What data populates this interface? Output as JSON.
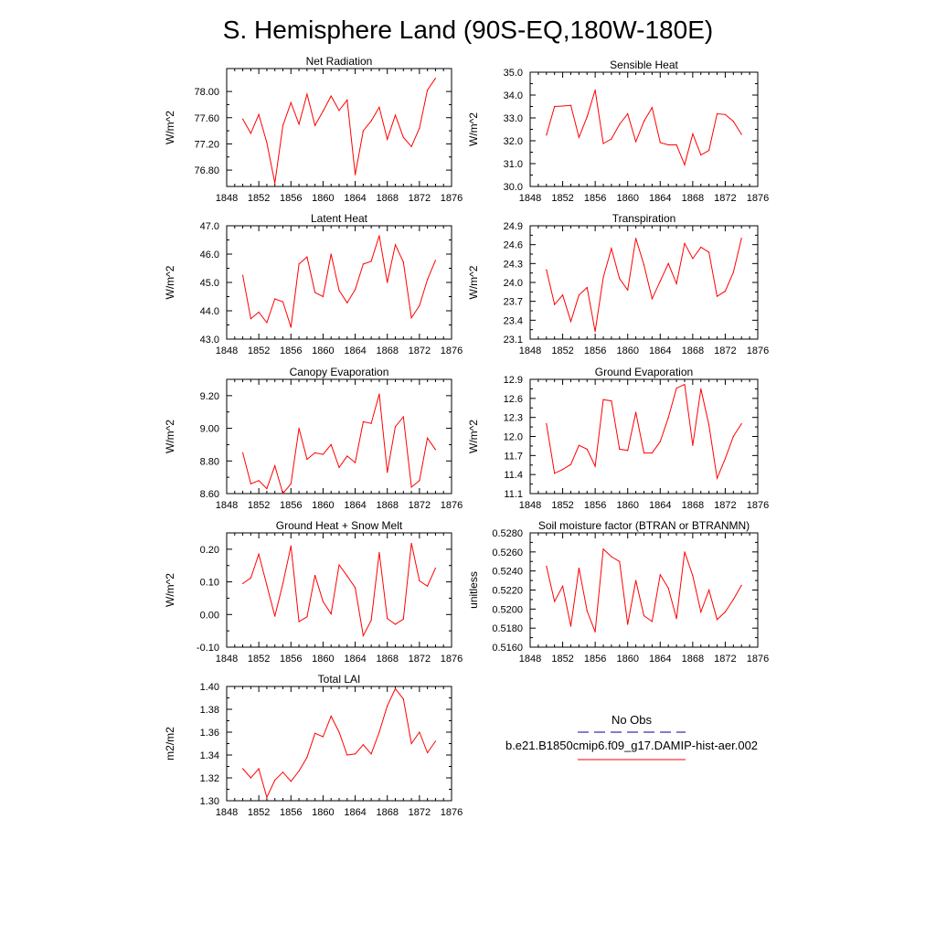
{
  "page_title": "S. Hemisphere Land (90S-EQ,180W-180E)",
  "legend": {
    "obs_label": "No Obs",
    "model_label": "b.e21.B1850cmip6.f09_g17.DAMIP-hist-aer.002",
    "obs_color": "#3333aa",
    "model_color": "#ff0000"
  },
  "chart_data": [
    {
      "type": "line",
      "title": "Net Radiation",
      "ylabel": "W/m^2",
      "xlim": [
        1848,
        1876
      ],
      "ylim": [
        76.55,
        78.35
      ],
      "xticks": [
        1848,
        1852,
        1856,
        1860,
        1864,
        1868,
        1872,
        1876
      ],
      "xtick_labels": [
        "1848",
        "1852",
        "1856",
        "1860",
        "1864",
        "1868",
        "1872",
        "1876"
      ],
      "yticks": [
        76.8,
        77.2,
        77.6,
        78.0
      ],
      "ytick_labels": [
        "76.80",
        "77.20",
        "77.60",
        "78.00"
      ],
      "series": [
        {
          "color": "#ff0000",
          "x": [
            1850,
            1851,
            1852,
            1853,
            1854,
            1855,
            1856,
            1857,
            1858,
            1859,
            1860,
            1861,
            1862,
            1863,
            1864,
            1865,
            1866,
            1867,
            1868,
            1869,
            1870,
            1871,
            1872,
            1873,
            1874
          ],
          "values": [
            77.58,
            77.36,
            77.65,
            77.22,
            76.6,
            77.48,
            77.83,
            77.5,
            77.96,
            77.48,
            77.7,
            77.93,
            77.71,
            77.87,
            76.73,
            77.4,
            77.55,
            77.76,
            77.27,
            77.64,
            77.3,
            77.16,
            77.44,
            78.02,
            78.2
          ]
        }
      ]
    },
    {
      "type": "line",
      "title": "Sensible Heat",
      "ylabel": "W/m^2",
      "xlim": [
        1848,
        1876
      ],
      "ylim": [
        30.0,
        35.0
      ],
      "xticks": [
        1848,
        1852,
        1856,
        1860,
        1864,
        1868,
        1872,
        1876
      ],
      "xtick_labels": [
        "1848",
        "1852",
        "1856",
        "1860",
        "1864",
        "1868",
        "1872",
        "1876"
      ],
      "yticks": [
        30.0,
        31.0,
        32.0,
        33.0,
        34.0,
        35.0
      ],
      "ytick_labels": [
        "30.0",
        "31.0",
        "32.0",
        "33.0",
        "34.0",
        "35.0"
      ],
      "series": [
        {
          "color": "#ff0000",
          "x": [
            1850,
            1851,
            1852,
            1853,
            1854,
            1855,
            1856,
            1857,
            1858,
            1859,
            1860,
            1861,
            1862,
            1863,
            1864,
            1865,
            1866,
            1867,
            1868,
            1869,
            1870,
            1871,
            1872,
            1873,
            1874
          ],
          "values": [
            32.25,
            33.5,
            33.52,
            33.55,
            32.15,
            33.05,
            34.22,
            31.88,
            32.08,
            32.72,
            33.18,
            31.96,
            32.85,
            33.45,
            31.92,
            31.82,
            31.82,
            30.95,
            32.3,
            31.38,
            31.58,
            33.18,
            33.15,
            32.85,
            32.28
          ]
        }
      ]
    },
    {
      "type": "line",
      "title": "Latent Heat",
      "ylabel": "W/m^2",
      "xlim": [
        1848,
        1876
      ],
      "ylim": [
        43.0,
        47.0
      ],
      "xticks": [
        1848,
        1852,
        1856,
        1860,
        1864,
        1868,
        1872,
        1876
      ],
      "xtick_labels": [
        "1848",
        "1852",
        "1856",
        "1860",
        "1864",
        "1868",
        "1872",
        "1876"
      ],
      "yticks": [
        43.0,
        44.0,
        45.0,
        46.0,
        47.0
      ],
      "ytick_labels": [
        "43.0",
        "44.0",
        "45.0",
        "46.0",
        "47.0"
      ],
      "series": [
        {
          "color": "#ff0000",
          "x": [
            1850,
            1851,
            1852,
            1853,
            1854,
            1855,
            1856,
            1857,
            1858,
            1859,
            1860,
            1861,
            1862,
            1863,
            1864,
            1865,
            1866,
            1867,
            1868,
            1869,
            1870,
            1871,
            1872,
            1873,
            1874
          ],
          "values": [
            45.25,
            43.72,
            43.95,
            43.58,
            44.42,
            44.32,
            43.42,
            45.65,
            45.9,
            44.65,
            44.5,
            46.0,
            44.72,
            44.28,
            44.75,
            45.65,
            45.75,
            46.65,
            45.0,
            46.33,
            45.72,
            43.75,
            44.18,
            45.1,
            45.78
          ]
        }
      ]
    },
    {
      "type": "line",
      "title": "Transpiration",
      "ylabel": "W/m^2",
      "xlim": [
        1848,
        1876
      ],
      "ylim": [
        23.1,
        24.9
      ],
      "xticks": [
        1848,
        1852,
        1856,
        1860,
        1864,
        1868,
        1872,
        1876
      ],
      "xtick_labels": [
        "1848",
        "1852",
        "1856",
        "1860",
        "1864",
        "1868",
        "1872",
        "1876"
      ],
      "yticks": [
        23.1,
        23.4,
        23.7,
        24.0,
        24.3,
        24.6,
        24.9
      ],
      "ytick_labels": [
        "23.1",
        "23.4",
        "23.7",
        "24.0",
        "24.3",
        "24.6",
        "24.9"
      ],
      "series": [
        {
          "color": "#ff0000",
          "x": [
            1850,
            1851,
            1852,
            1853,
            1854,
            1855,
            1856,
            1857,
            1858,
            1859,
            1860,
            1861,
            1862,
            1863,
            1864,
            1865,
            1866,
            1867,
            1868,
            1869,
            1870,
            1871,
            1872,
            1873,
            1874
          ],
          "values": [
            24.2,
            23.65,
            23.8,
            23.38,
            23.8,
            23.92,
            23.22,
            24.08,
            24.54,
            24.06,
            23.88,
            24.7,
            24.28,
            23.74,
            24.02,
            24.3,
            23.98,
            24.62,
            24.38,
            24.56,
            24.48,
            23.78,
            23.86,
            24.16,
            24.7
          ]
        }
      ]
    },
    {
      "type": "line",
      "title": "Canopy Evaporation",
      "ylabel": "W/m^2",
      "xlim": [
        1848,
        1876
      ],
      "ylim": [
        8.6,
        9.3
      ],
      "xticks": [
        1848,
        1852,
        1856,
        1860,
        1864,
        1868,
        1872,
        1876
      ],
      "xtick_labels": [
        "1848",
        "1852",
        "1856",
        "1860",
        "1864",
        "1868",
        "1872",
        "1876"
      ],
      "yticks": [
        8.6,
        8.8,
        9.0,
        9.2
      ],
      "ytick_labels": [
        "8.60",
        "8.80",
        "9.00",
        "9.20"
      ],
      "series": [
        {
          "color": "#ff0000",
          "x": [
            1850,
            1851,
            1852,
            1853,
            1854,
            1855,
            1856,
            1857,
            1858,
            1859,
            1860,
            1861,
            1862,
            1863,
            1864,
            1865,
            1866,
            1867,
            1868,
            1869,
            1870,
            1871,
            1872,
            1873,
            1874
          ],
          "values": [
            8.85,
            8.66,
            8.68,
            8.63,
            8.77,
            8.6,
            8.66,
            9.0,
            8.81,
            8.85,
            8.84,
            8.9,
            8.76,
            8.83,
            8.79,
            9.04,
            9.03,
            9.21,
            8.73,
            9.01,
            9.07,
            8.64,
            8.68,
            8.94,
            8.87
          ]
        }
      ]
    },
    {
      "type": "line",
      "title": "Ground Evaporation",
      "ylabel": "W/m^2",
      "xlim": [
        1848,
        1876
      ],
      "ylim": [
        11.1,
        12.9
      ],
      "xticks": [
        1848,
        1852,
        1856,
        1860,
        1864,
        1868,
        1872,
        1876
      ],
      "xtick_labels": [
        "1848",
        "1852",
        "1856",
        "1860",
        "1864",
        "1868",
        "1872",
        "1876"
      ],
      "yticks": [
        11.1,
        11.4,
        11.7,
        12.0,
        12.3,
        12.6,
        12.9
      ],
      "ytick_labels": [
        "11.1",
        "11.4",
        "11.7",
        "12.0",
        "12.3",
        "12.6",
        "12.9"
      ],
      "series": [
        {
          "color": "#ff0000",
          "x": [
            1850,
            1851,
            1852,
            1853,
            1854,
            1855,
            1856,
            1857,
            1858,
            1859,
            1860,
            1861,
            1862,
            1863,
            1864,
            1865,
            1866,
            1867,
            1868,
            1869,
            1870,
            1871,
            1872,
            1873,
            1874
          ],
          "values": [
            12.2,
            11.42,
            11.48,
            11.56,
            11.86,
            11.8,
            11.53,
            12.58,
            12.56,
            11.8,
            11.78,
            12.38,
            11.74,
            11.74,
            11.92,
            12.3,
            12.76,
            12.82,
            11.86,
            12.75,
            12.18,
            11.34,
            11.65,
            12.0,
            12.2
          ]
        }
      ]
    },
    {
      "type": "line",
      "title": "Ground Heat + Snow Melt",
      "ylabel": "W/m^2",
      "xlim": [
        1848,
        1876
      ],
      "ylim": [
        -0.1,
        0.25
      ],
      "xticks": [
        1848,
        1852,
        1856,
        1860,
        1864,
        1868,
        1872,
        1876
      ],
      "xtick_labels": [
        "1848",
        "1852",
        "1856",
        "1860",
        "1864",
        "1868",
        "1872",
        "1876"
      ],
      "yticks": [
        -0.1,
        0.0,
        0.1,
        0.2
      ],
      "ytick_labels": [
        "-0.10",
        "0.00",
        "0.10",
        "0.20"
      ],
      "series": [
        {
          "color": "#ff0000",
          "x": [
            1850,
            1851,
            1852,
            1853,
            1854,
            1855,
            1856,
            1857,
            1858,
            1859,
            1860,
            1861,
            1862,
            1863,
            1864,
            1865,
            1866,
            1867,
            1868,
            1869,
            1870,
            1871,
            1872,
            1873,
            1874
          ],
          "values": [
            0.095,
            0.112,
            0.185,
            0.09,
            -0.005,
            0.095,
            0.21,
            -0.022,
            -0.007,
            0.12,
            0.04,
            0.002,
            0.152,
            0.118,
            0.082,
            -0.065,
            -0.018,
            0.19,
            -0.012,
            -0.03,
            -0.014,
            0.218,
            0.103,
            0.087,
            0.142
          ]
        }
      ]
    },
    {
      "type": "line",
      "title": "Soil moisture factor (BTRAN or BTRANMN)",
      "ylabel": "unitless",
      "xlim": [
        1848,
        1876
      ],
      "ylim": [
        0.516,
        0.528
      ],
      "xticks": [
        1848,
        1852,
        1856,
        1860,
        1864,
        1868,
        1872,
        1876
      ],
      "xtick_labels": [
        "1848",
        "1852",
        "1856",
        "1860",
        "1864",
        "1868",
        "1872",
        "1876"
      ],
      "yticks": [
        0.516,
        0.518,
        0.52,
        0.522,
        0.524,
        0.526,
        0.528
      ],
      "ytick_labels": [
        "0.5160",
        "0.5180",
        "0.5200",
        "0.5220",
        "0.5240",
        "0.5260",
        "0.5280"
      ],
      "series": [
        {
          "color": "#ff0000",
          "x": [
            1850,
            1851,
            1852,
            1853,
            1854,
            1855,
            1856,
            1857,
            1858,
            1859,
            1860,
            1861,
            1862,
            1863,
            1864,
            1865,
            1866,
            1867,
            1868,
            1869,
            1870,
            1871,
            1872,
            1873,
            1874
          ],
          "values": [
            0.5245,
            0.5208,
            0.5224,
            0.5182,
            0.5243,
            0.5198,
            0.5176,
            0.5263,
            0.5255,
            0.525,
            0.5184,
            0.523,
            0.5193,
            0.5187,
            0.5236,
            0.5222,
            0.519,
            0.526,
            0.5235,
            0.5197,
            0.522,
            0.5189,
            0.5197,
            0.521,
            0.5225
          ]
        }
      ]
    },
    {
      "type": "line",
      "title": "Total LAI",
      "ylabel": "m2/m2",
      "xlim": [
        1848,
        1876
      ],
      "ylim": [
        1.3,
        1.4
      ],
      "xticks": [
        1848,
        1852,
        1856,
        1860,
        1864,
        1868,
        1872,
        1876
      ],
      "xtick_labels": [
        "1848",
        "1852",
        "1856",
        "1860",
        "1864",
        "1868",
        "1872",
        "1876"
      ],
      "yticks": [
        1.3,
        1.32,
        1.34,
        1.36,
        1.38,
        1.4
      ],
      "ytick_labels": [
        "1.30",
        "1.32",
        "1.34",
        "1.36",
        "1.38",
        "1.40"
      ],
      "series": [
        {
          "color": "#ff0000",
          "x": [
            1850,
            1851,
            1852,
            1853,
            1854,
            1855,
            1856,
            1857,
            1858,
            1859,
            1860,
            1861,
            1862,
            1863,
            1864,
            1865,
            1866,
            1867,
            1868,
            1869,
            1870,
            1871,
            1872,
            1873,
            1874
          ],
          "values": [
            1.328,
            1.32,
            1.328,
            1.303,
            1.318,
            1.325,
            1.317,
            1.326,
            1.338,
            1.359,
            1.356,
            1.374,
            1.36,
            1.34,
            1.341,
            1.349,
            1.341,
            1.36,
            1.383,
            1.398,
            1.389,
            1.35,
            1.36,
            1.342,
            1.352
          ]
        }
      ]
    }
  ]
}
